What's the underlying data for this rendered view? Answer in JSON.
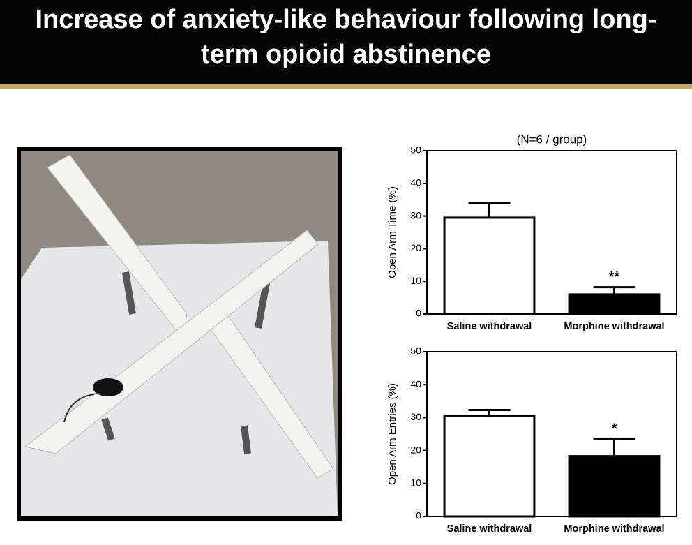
{
  "title_lines": [
    "Increase of anxiety-like behaviour following long-",
    "term opioid abstinence"
  ],
  "chart_data": [
    {
      "type": "bar",
      "subtitle": "(N=6 / group)",
      "y_label": "Open Arm Time (%)",
      "categories": [
        "Saline withdrawal",
        "Morphine withdrawal"
      ],
      "values": [
        29.5,
        6
      ],
      "errors": [
        4.5,
        2.2
      ],
      "value_annotations": [
        null,
        "**"
      ],
      "colors": [
        "#ffffff",
        "#000000"
      ],
      "ylim": [
        0,
        50
      ],
      "yticks": [
        0,
        10,
        20,
        30,
        40,
        50
      ]
    },
    {
      "type": "bar",
      "y_label": "Open Arm Entries (%)",
      "categories": [
        "Saline withdrawal",
        "Morphine withdrawal"
      ],
      "values": [
        30.5,
        18.3
      ],
      "errors": [
        1.8,
        5.2
      ],
      "value_annotations": [
        null,
        "*"
      ],
      "colors": [
        "#ffffff",
        "#000000"
      ],
      "ylim": [
        0,
        50
      ],
      "yticks": [
        0,
        10,
        20,
        30,
        40,
        50
      ]
    }
  ]
}
